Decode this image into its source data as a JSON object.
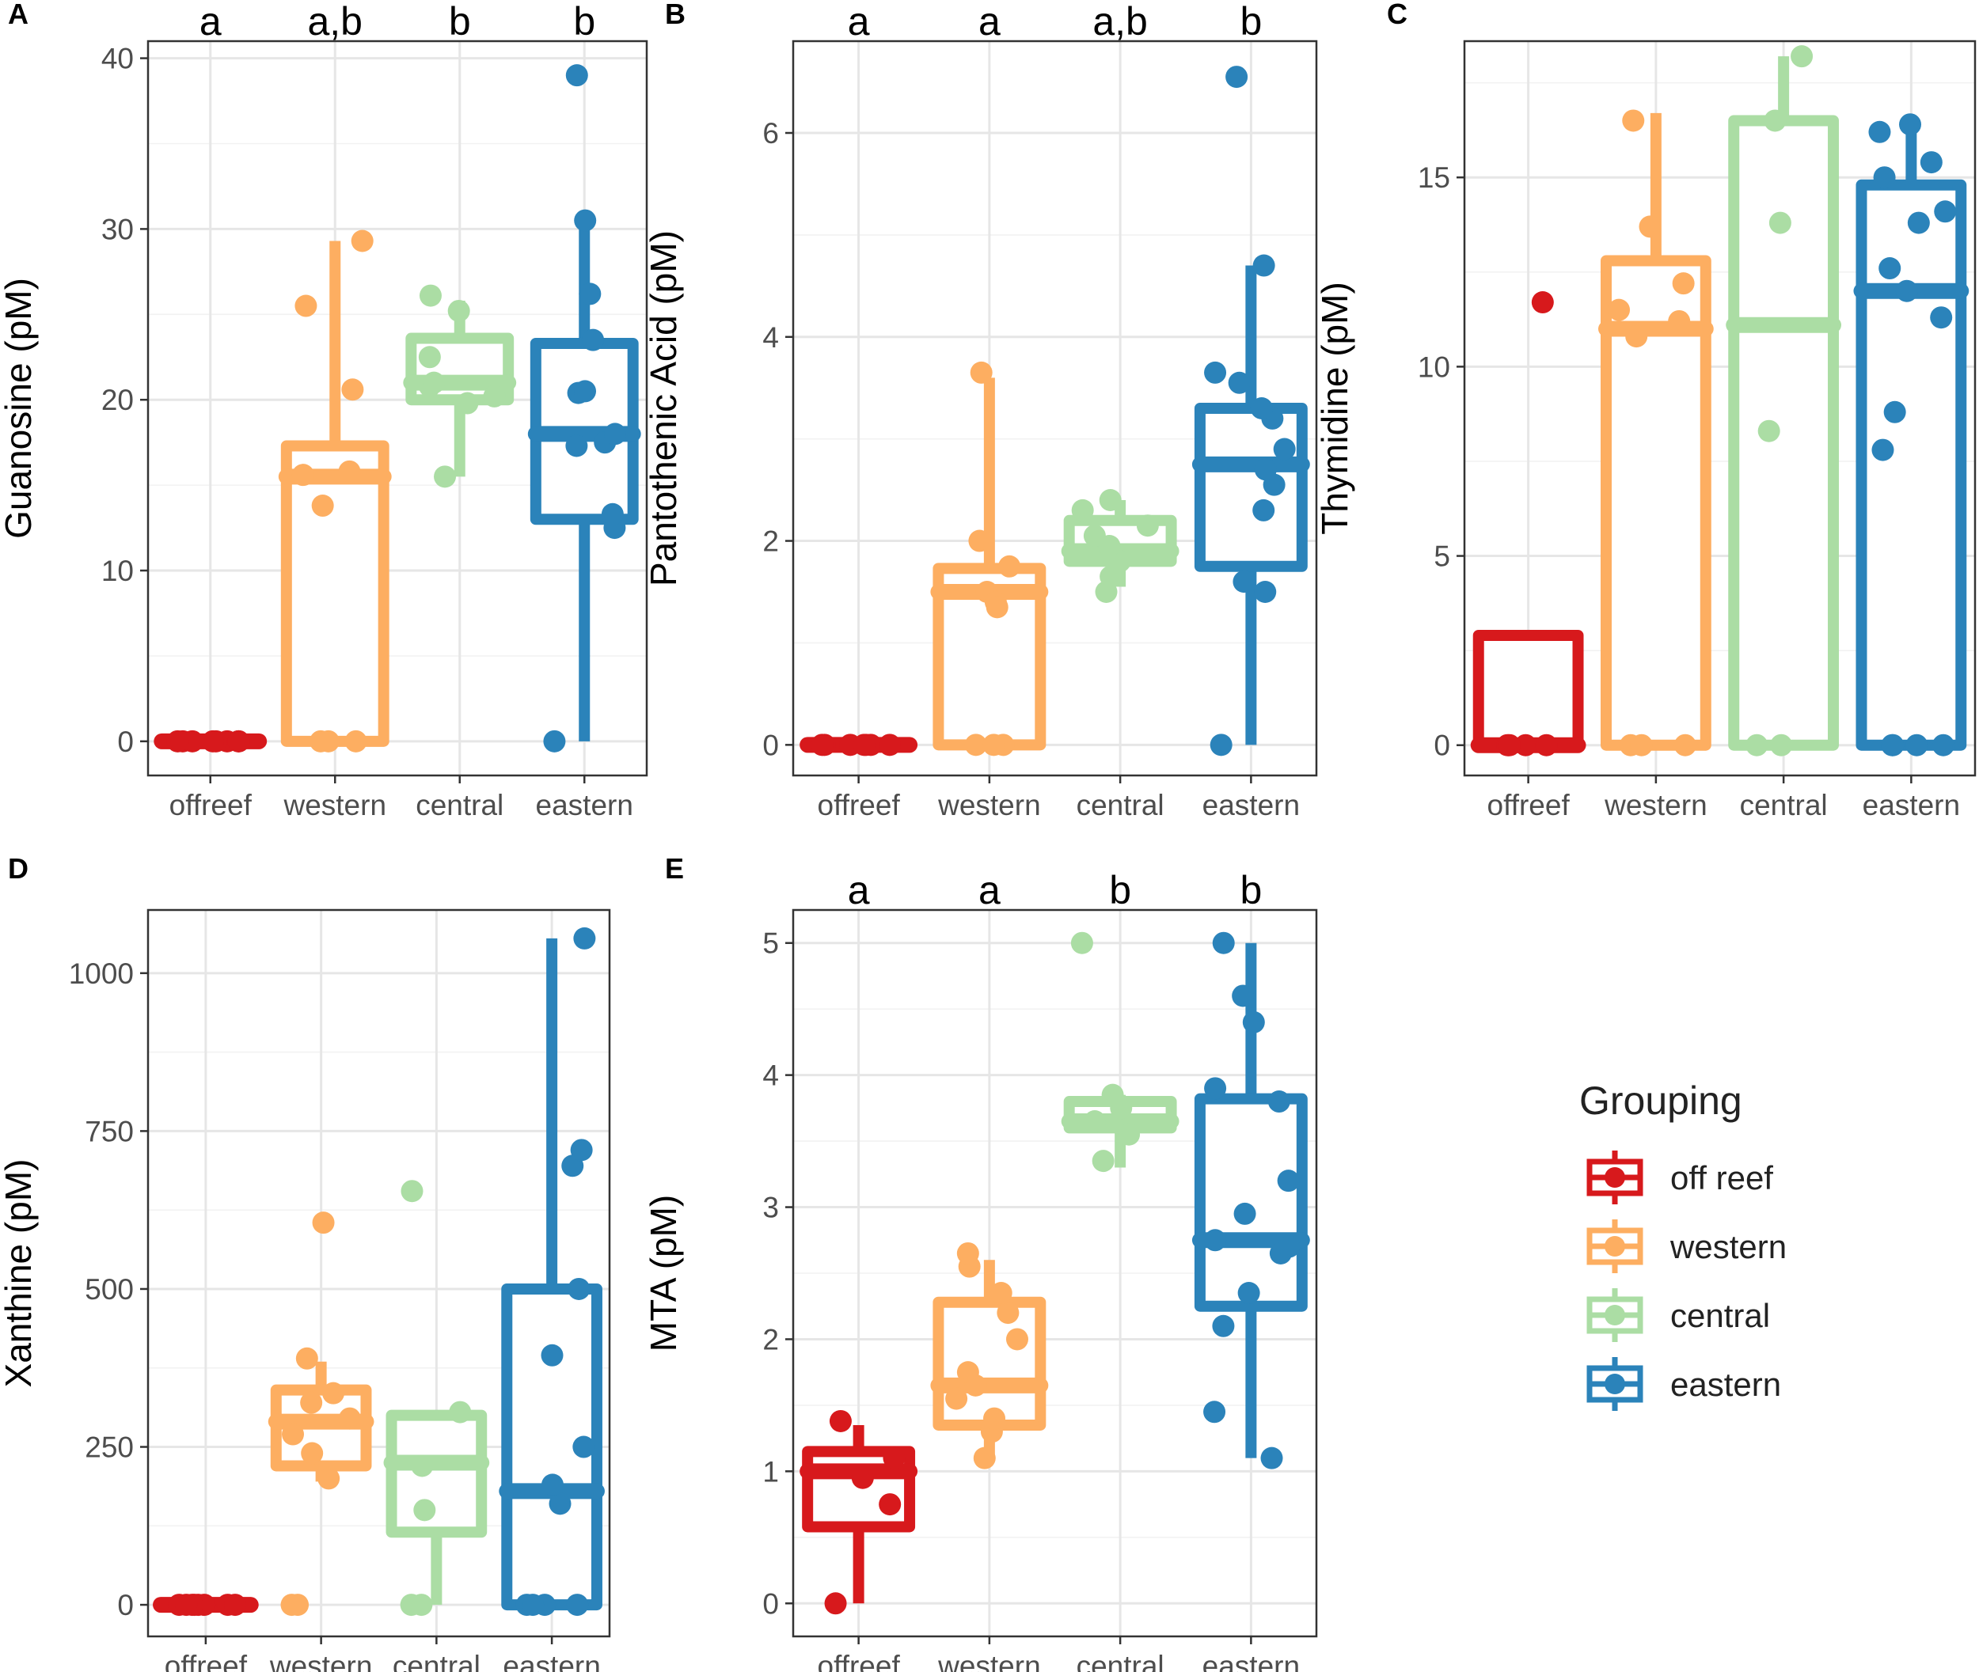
{
  "legend": {
    "title": "Grouping",
    "entries": [
      {
        "label": "off reef",
        "color": "#d7191c"
      },
      {
        "label": "western",
        "color": "#fdae61"
      },
      {
        "label": "central",
        "color": "#abdda4"
      },
      {
        "label": "eastern",
        "color": "#2b83ba"
      }
    ]
  },
  "chart_data": [
    {
      "panel": "A",
      "type": "box+scatter",
      "ylabel": "Guanosine (pM)",
      "categories": [
        "offreef",
        "western",
        "central",
        "eastern"
      ],
      "letters": [
        "a",
        "a,b",
        "b",
        "b"
      ],
      "ylim": [
        -2,
        41
      ],
      "yticks": [
        0,
        10,
        20,
        30,
        40
      ],
      "boxes": [
        {
          "q1": 0,
          "median": 0,
          "q3": 0,
          "lower": 0,
          "upper": 0
        },
        {
          "q1": 0,
          "median": 15.5,
          "q3": 17.3,
          "lower": 0,
          "upper": 29.3
        },
        {
          "q1": 20,
          "median": 21,
          "q3": 23.6,
          "lower": 15.5,
          "upper": 25.8
        },
        {
          "q1": 13,
          "median": 18,
          "q3": 23.3,
          "lower": 0,
          "upper": 30.2
        }
      ],
      "points": [
        [
          0,
          0,
          0,
          0,
          0,
          0,
          0,
          0
        ],
        [
          0,
          0,
          0,
          29.3,
          25.5,
          20.6,
          15.8,
          15.6,
          13.8
        ],
        [
          15.5,
          19.8,
          20.2,
          20.8,
          21,
          22.5,
          25.2,
          26.1
        ],
        [
          0,
          12.5,
          13.3,
          17.3,
          17.5,
          18,
          20.4,
          20.5,
          23.5,
          26.2,
          30.5,
          39
        ]
      ]
    },
    {
      "panel": "B",
      "type": "box+scatter",
      "ylabel": "Pantothenic Acid (pM)",
      "categories": [
        "offreef",
        "western",
        "central",
        "eastern"
      ],
      "letters": [
        "a",
        "a",
        "a,b",
        "b"
      ],
      "ylim": [
        -0.3,
        6.9
      ],
      "yticks": [
        0,
        2,
        4,
        6
      ],
      "boxes": [
        {
          "q1": 0,
          "median": 0,
          "q3": 0,
          "lower": 0,
          "upper": 0
        },
        {
          "q1": 0,
          "median": 1.5,
          "q3": 1.73,
          "lower": 0,
          "upper": 3.6
        },
        {
          "q1": 1.8,
          "median": 1.9,
          "q3": 2.2,
          "lower": 1.55,
          "upper": 2.4
        },
        {
          "q1": 1.75,
          "median": 2.75,
          "q3": 3.3,
          "lower": 0,
          "upper": 4.7
        }
      ],
      "points": [
        [
          0,
          0,
          0,
          0,
          0,
          0,
          0
        ],
        [
          0,
          0,
          0,
          3.65,
          2,
          1.75,
          1.5,
          1.4,
          1.35
        ],
        [
          1.5,
          1.65,
          1.8,
          1.95,
          2.05,
          2.15,
          2.3,
          2.4
        ],
        [
          0,
          1.5,
          1.6,
          2.3,
          2.55,
          2.7,
          2.9,
          3.2,
          3.3,
          3.55,
          3.65,
          4.7,
          6.55
        ]
      ]
    },
    {
      "panel": "C",
      "type": "box+scatter",
      "ylabel": "Thymidine (pM)",
      "categories": [
        "offreef",
        "western",
        "central",
        "eastern"
      ],
      "letters": [],
      "ylim": [
        -0.8,
        18.6
      ],
      "yticks": [
        0,
        5,
        10,
        15
      ],
      "boxes": [
        {
          "q1": 0,
          "median": 0,
          "q3": 2.9,
          "lower": 0,
          "upper": 0
        },
        {
          "q1": 0,
          "median": 11,
          "q3": 12.8,
          "lower": 0,
          "upper": 16.7
        },
        {
          "q1": 0,
          "median": 11.1,
          "q3": 16.5,
          "lower": 0,
          "upper": 18.2
        },
        {
          "q1": 0,
          "median": 12,
          "q3": 14.8,
          "lower": 0,
          "upper": 16.4
        }
      ],
      "points": [
        [
          0,
          0,
          0,
          0,
          11.7
        ],
        [
          0,
          0,
          0,
          10.8,
          11.2,
          11.5,
          12.2,
          13.7,
          16.5
        ],
        [
          0,
          0,
          8.3,
          13.8,
          16.5,
          18.2
        ],
        [
          0,
          0,
          0,
          0,
          7.8,
          8.8,
          11.3,
          12,
          12.6,
          13.8,
          14.1,
          15,
          15.4,
          16.2,
          16.4
        ]
      ]
    },
    {
      "panel": "D",
      "type": "box+scatter",
      "ylabel": "Xanthine (pM)",
      "categories": [
        "offreef",
        "western",
        "central",
        "eastern"
      ],
      "letters": [],
      "ylim": [
        -50,
        1100
      ],
      "yticks": [
        0,
        250,
        500,
        750,
        1000
      ],
      "ytick_labels": [
        "0",
        "250",
        "500",
        "750",
        "1000"
      ],
      "boxes": [
        {
          "q1": 0,
          "median": 0,
          "q3": 0,
          "lower": 0,
          "upper": 0
        },
        {
          "q1": 220,
          "median": 290,
          "q3": 340,
          "lower": 195,
          "upper": 385
        },
        {
          "q1": 115,
          "median": 225,
          "q3": 300,
          "lower": 0,
          "upper": 300
        },
        {
          "q1": 0,
          "median": 180,
          "q3": 500,
          "lower": 0,
          "upper": 1055
        }
      ],
      "points": [
        [
          0,
          0,
          0,
          0,
          0,
          0,
          0,
          0
        ],
        [
          0,
          0,
          200,
          240,
          270,
          295,
          320,
          335,
          390,
          605
        ],
        [
          0,
          0,
          150,
          220,
          305,
          655
        ],
        [
          0,
          0,
          0,
          0,
          160,
          190,
          250,
          395,
          500,
          695,
          720,
          1055
        ]
      ]
    },
    {
      "panel": "E",
      "type": "box+scatter",
      "ylabel": "MTA (pM)",
      "categories": [
        "offreef",
        "western",
        "central",
        "eastern"
      ],
      "letters": [
        "a",
        "a",
        "b",
        "b"
      ],
      "ylim": [
        -0.25,
        5.25
      ],
      "yticks": [
        0,
        1,
        2,
        3,
        4,
        5
      ],
      "boxes": [
        {
          "q1": 0.58,
          "median": 1,
          "q3": 1.15,
          "lower": 0,
          "upper": 1.35
        },
        {
          "q1": 1.35,
          "median": 1.65,
          "q3": 2.28,
          "lower": 1.1,
          "upper": 2.6
        },
        {
          "q1": 3.6,
          "median": 3.65,
          "q3": 3.8,
          "lower": 3.3,
          "upper": 3.85
        },
        {
          "q1": 2.25,
          "median": 2.75,
          "q3": 3.82,
          "lower": 1.1,
          "upper": 5
        }
      ],
      "points": [
        [
          0,
          0.75,
          0.95,
          1.1,
          1.38
        ],
        [
          1.1,
          1.3,
          1.4,
          1.55,
          1.65,
          1.75,
          2,
          2.2,
          2.35,
          2.55,
          2.65
        ],
        [
          3.35,
          3.55,
          3.65,
          3.75,
          3.85,
          5
        ],
        [
          1.1,
          1.45,
          2.1,
          2.35,
          2.65,
          2.7,
          2.75,
          2.95,
          3.2,
          3.8,
          3.9,
          4.4,
          4.6,
          5
        ]
      ]
    }
  ]
}
